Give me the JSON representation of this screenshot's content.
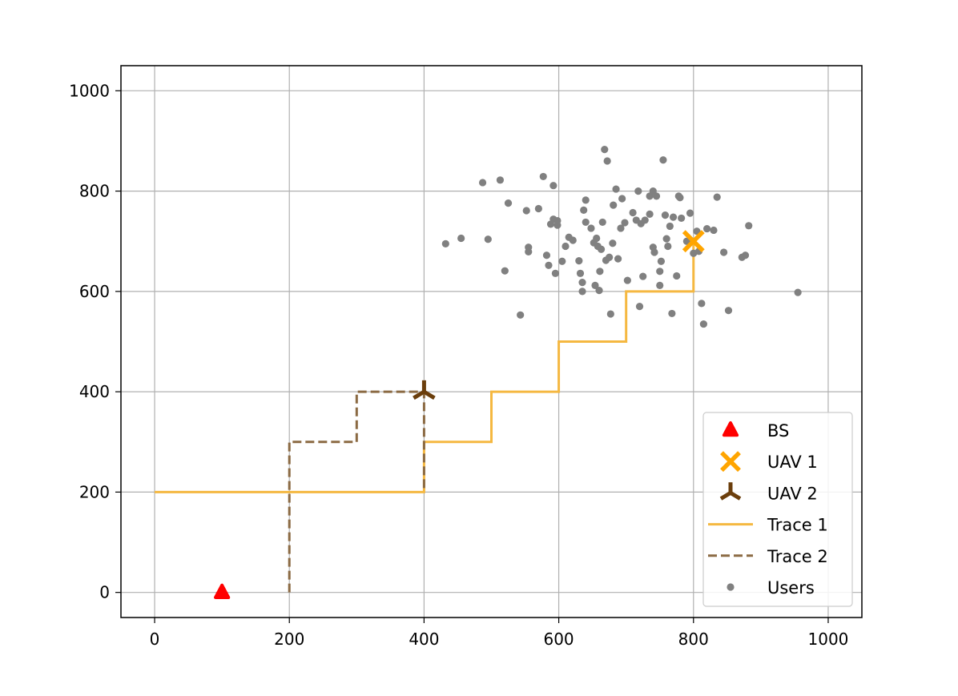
{
  "chart_data": {
    "type": "scatter",
    "title": "",
    "xlabel": "",
    "ylabel": "",
    "xlim": [
      -50,
      1050
    ],
    "ylim": [
      -50,
      1050
    ],
    "xticks": [
      0,
      200,
      400,
      600,
      800,
      1000
    ],
    "yticks": [
      0,
      200,
      400,
      600,
      800,
      1000
    ],
    "grid": true,
    "legend_position": "lower-right",
    "colors": {
      "bs": "#ff0000",
      "uav1": "#ffa500",
      "uav2": "#6b3e0c",
      "trace1": "#f5b841",
      "trace2": "#8b6a43",
      "users": "#808080",
      "grid": "#b0b0b0"
    },
    "series": [
      {
        "name": "BS",
        "kind": "marker",
        "marker": "triangle",
        "points": [
          [
            100,
            0
          ]
        ]
      },
      {
        "name": "UAV 1",
        "kind": "marker",
        "marker": "x",
        "points": [
          [
            800,
            700
          ]
        ]
      },
      {
        "name": "UAV 2",
        "kind": "marker",
        "marker": "tri-down",
        "points": [
          [
            400,
            400
          ]
        ]
      },
      {
        "name": "Trace 1",
        "kind": "line",
        "style": "solid",
        "points": [
          [
            0,
            200
          ],
          [
            400,
            200
          ],
          [
            400,
            300
          ],
          [
            500,
            300
          ],
          [
            500,
            400
          ],
          [
            600,
            400
          ],
          [
            600,
            500
          ],
          [
            700,
            500
          ],
          [
            700,
            600
          ],
          [
            800,
            600
          ],
          [
            800,
            700
          ]
        ]
      },
      {
        "name": "Trace 2",
        "kind": "line",
        "style": "dashed",
        "points": [
          [
            200,
            0
          ],
          [
            200,
            300
          ],
          [
            300,
            300
          ],
          [
            300,
            400
          ],
          [
            400,
            400
          ],
          [
            400,
            200
          ]
        ]
      },
      {
        "name": "Users",
        "kind": "scatter",
        "points": [
          [
            432,
            695
          ],
          [
            455,
            706
          ],
          [
            487,
            817
          ],
          [
            495,
            704
          ],
          [
            513,
            822
          ],
          [
            520,
            641
          ],
          [
            525,
            776
          ],
          [
            543,
            553
          ],
          [
            552,
            761
          ],
          [
            555,
            679
          ],
          [
            555,
            688
          ],
          [
            570,
            765
          ],
          [
            577,
            829
          ],
          [
            582,
            672
          ],
          [
            585,
            652
          ],
          [
            588,
            734
          ],
          [
            592,
            811
          ],
          [
            592,
            744
          ],
          [
            595,
            636
          ],
          [
            598,
            732
          ],
          [
            598,
            741
          ],
          [
            605,
            660
          ],
          [
            610,
            690
          ],
          [
            615,
            708
          ],
          [
            621,
            702
          ],
          [
            630,
            661
          ],
          [
            632,
            636
          ],
          [
            635,
            600
          ],
          [
            635,
            618
          ],
          [
            637,
            762
          ],
          [
            640,
            782
          ],
          [
            640,
            738
          ],
          [
            648,
            726
          ],
          [
            652,
            697
          ],
          [
            654,
            612
          ],
          [
            656,
            706
          ],
          [
            658,
            690
          ],
          [
            660,
            602
          ],
          [
            661,
            640
          ],
          [
            663,
            684
          ],
          [
            665,
            738
          ],
          [
            668,
            883
          ],
          [
            670,
            662
          ],
          [
            672,
            860
          ],
          [
            675,
            668
          ],
          [
            677,
            555
          ],
          [
            680,
            696
          ],
          [
            681,
            772
          ],
          [
            685,
            804
          ],
          [
            688,
            665
          ],
          [
            692,
            726
          ],
          [
            694,
            785
          ],
          [
            698,
            737
          ],
          [
            702,
            622
          ],
          [
            710,
            757
          ],
          [
            715,
            742
          ],
          [
            718,
            800
          ],
          [
            720,
            570
          ],
          [
            722,
            735
          ],
          [
            725,
            630
          ],
          [
            728,
            742
          ],
          [
            735,
            790
          ],
          [
            735,
            754
          ],
          [
            740,
            800
          ],
          [
            740,
            688
          ],
          [
            742,
            678
          ],
          [
            745,
            790
          ],
          [
            750,
            640
          ],
          [
            750,
            612
          ],
          [
            752,
            660
          ],
          [
            755,
            862
          ],
          [
            758,
            752
          ],
          [
            760,
            705
          ],
          [
            762,
            690
          ],
          [
            765,
            730
          ],
          [
            768,
            556
          ],
          [
            770,
            748
          ],
          [
            775,
            631
          ],
          [
            778,
            790
          ],
          [
            780,
            787
          ],
          [
            782,
            746
          ],
          [
            790,
            700
          ],
          [
            795,
            756
          ],
          [
            800,
            676
          ],
          [
            805,
            720
          ],
          [
            808,
            680
          ],
          [
            812,
            576
          ],
          [
            815,
            535
          ],
          [
            820,
            725
          ],
          [
            830,
            722
          ],
          [
            835,
            788
          ],
          [
            845,
            678
          ],
          [
            852,
            562
          ],
          [
            872,
            668
          ],
          [
            877,
            672
          ],
          [
            882,
            731
          ],
          [
            955,
            598
          ]
        ]
      }
    ]
  }
}
